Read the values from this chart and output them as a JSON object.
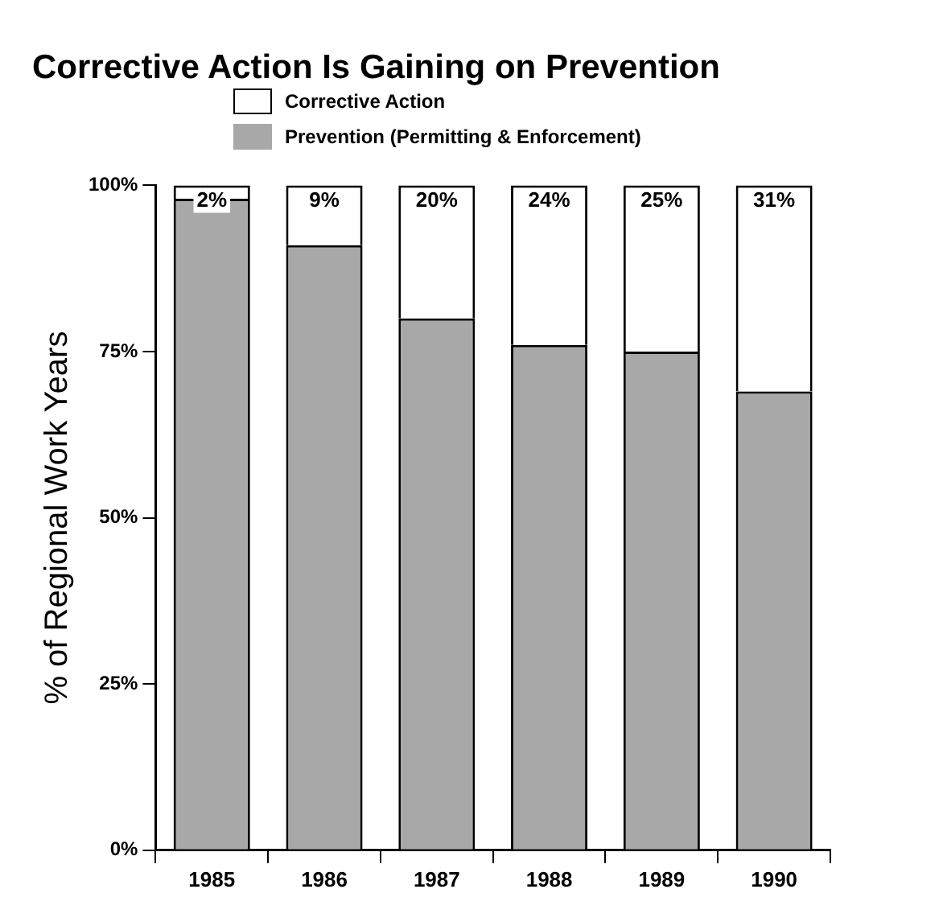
{
  "chart_data": {
    "type": "bar",
    "title": "Corrective Action Is Gaining on Prevention",
    "ylabel": "% of Regional Work Years",
    "categories": [
      "1985",
      "1986",
      "1987",
      "1988",
      "1989",
      "1990"
    ],
    "stacked": true,
    "series": [
      {
        "name": "Prevention (Permitting & Enforcement)",
        "color": "#a8a8a8",
        "values": [
          98,
          91,
          80,
          76,
          75,
          69
        ]
      },
      {
        "name": "Corrective Action",
        "color": "#ffffff",
        "values": [
          2,
          9,
          20,
          24,
          25,
          31
        ],
        "value_labels": [
          "2%",
          "9%",
          "20%",
          "24%",
          "25%",
          "31%"
        ]
      }
    ],
    "ylim": [
      0,
      100
    ],
    "yticks": [
      {
        "value": 0,
        "label": "0%"
      },
      {
        "value": 25,
        "label": "25%"
      },
      {
        "value": 50,
        "label": "50%"
      },
      {
        "value": 75,
        "label": "75%"
      },
      {
        "value": 100,
        "label": "100%"
      }
    ],
    "grid": false,
    "legend": "top"
  }
}
